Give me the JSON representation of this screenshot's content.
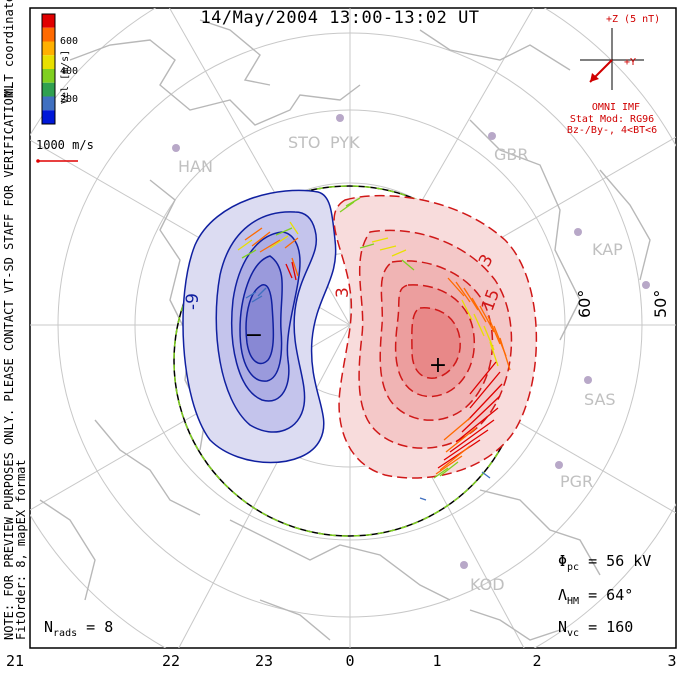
{
  "title": "14/May/2004 13:00-13:02 UT",
  "coord_label": "MLT coordinates",
  "note": "NOTE: FOR PREVIEW PURPOSES ONLY. PLEASE CONTACT VT-SD STAFF FOR VERIFICATION.",
  "fit_order": "FitOrder: 8, mapEX format",
  "colorbar": {
    "label": "Vel [m/s]",
    "ticks": [
      "600",
      "400",
      "200"
    ],
    "colors": [
      "#e00000",
      "#ff6a00",
      "#ffb000",
      "#e8e000",
      "#80d020",
      "#30a050",
      "#4070c0",
      "#0018d8"
    ]
  },
  "velocity_scale": "1000 m/s",
  "imf": {
    "z_label": "+Z (5 nT)",
    "y_label": "+Y",
    "source": "OMNI IMF",
    "model": "Stat Mod: RG96",
    "condition": "Bz-/By-, 4<BT<6"
  },
  "stations": [
    "STO",
    "PYK",
    "HAN",
    "GBR",
    "KAP",
    "SAS",
    "PGR",
    "KOD"
  ],
  "latitude_labels": [
    "60°",
    "50°"
  ],
  "mlt_labels": [
    "21",
    "22",
    "23",
    "0",
    "1",
    "2",
    "3"
  ],
  "contour_labels": [
    "-9",
    "3",
    "3",
    "15"
  ],
  "stats": {
    "phi_pc": "56 kV",
    "lambda_hm": "64°",
    "n_vc": "160",
    "n_rads": "8"
  },
  "extremes": {
    "min": "−",
    "max": "+"
  }
}
